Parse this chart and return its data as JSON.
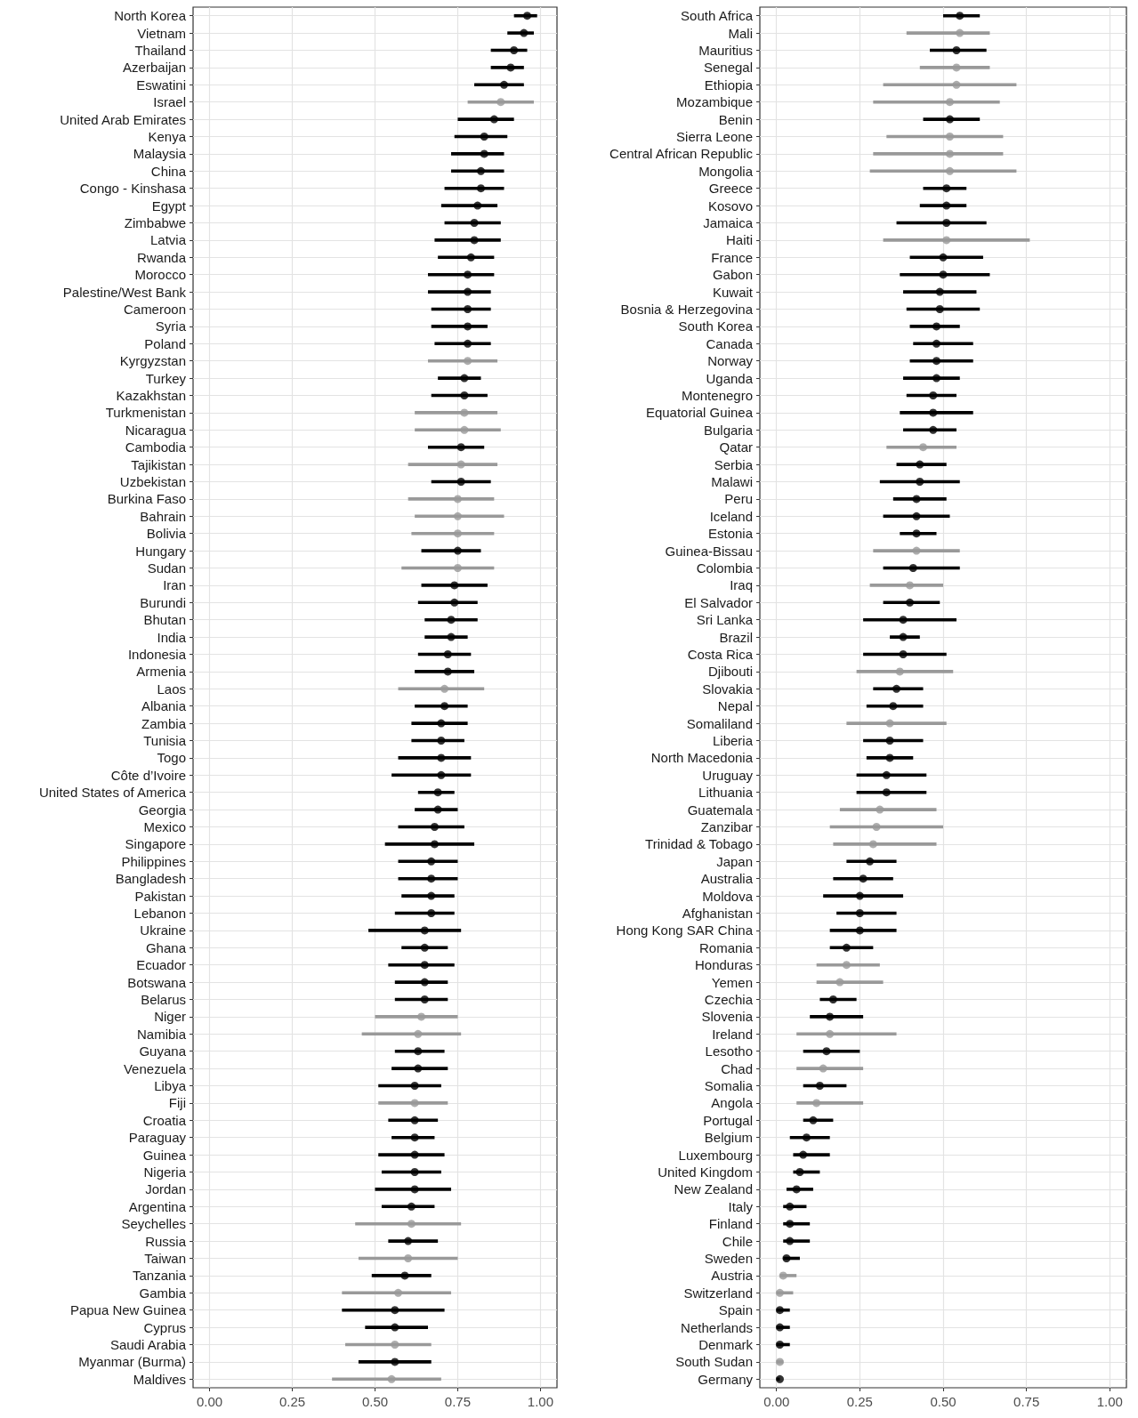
{
  "chart_data": [
    {
      "type": "scatter",
      "orientation": "horizontal",
      "marker": "circle",
      "grid": true,
      "xlim": [
        -0.05,
        1.05
      ],
      "xticks": [
        {
          "value": 0,
          "label": "0.00"
        },
        {
          "value": 0.25,
          "label": "0.25"
        },
        {
          "value": 0.5,
          "label": "0.50"
        },
        {
          "value": 0.75,
          "label": "0.75"
        },
        {
          "value": 1,
          "label": "1.00"
        }
      ],
      "categories": [
        "North Korea",
        "Vietnam",
        "Thailand",
        "Azerbaijan",
        "Eswatini",
        "Israel",
        "United Arab Emirates",
        "Kenya",
        "Malaysia",
        "China",
        "Congo - Kinshasa",
        "Egypt",
        "Zimbabwe",
        "Latvia",
        "Rwanda",
        "Morocco",
        "Palestine/West Bank",
        "Cameroon",
        "Syria",
        "Poland",
        "Kyrgyzstan",
        "Turkey",
        "Kazakhstan",
        "Turkmenistan",
        "Nicaragua",
        "Cambodia",
        "Tajikistan",
        "Uzbekistan",
        "Burkina Faso",
        "Bahrain",
        "Bolivia",
        "Hungary",
        "Sudan",
        "Iran",
        "Burundi",
        "Bhutan",
        "India",
        "Indonesia",
        "Armenia",
        "Laos",
        "Albania",
        "Zambia",
        "Tunisia",
        "Togo",
        "Côte d’Ivoire",
        "United States of America",
        "Georgia",
        "Mexico",
        "Singapore",
        "Philippines",
        "Bangladesh",
        "Pakistan",
        "Lebanon",
        "Ukraine",
        "Ghana",
        "Ecuador",
        "Botswana",
        "Belarus",
        "Niger",
        "Namibia",
        "Guyana",
        "Venezuela",
        "Libya",
        "Fiji",
        "Croatia",
        "Paraguay",
        "Guinea",
        "Nigeria",
        "Jordan",
        "Argentina",
        "Seychelles",
        "Russia",
        "Taiwan",
        "Tanzania",
        "Gambia",
        "Papua New Guinea",
        "Cyprus",
        "Saudi Arabia",
        "Myanmar (Burma)",
        "Maldives"
      ],
      "values": [
        0.96,
        0.95,
        0.92,
        0.91,
        0.89,
        0.88,
        0.86,
        0.83,
        0.83,
        0.82,
        0.82,
        0.81,
        0.8,
        0.8,
        0.79,
        0.78,
        0.78,
        0.78,
        0.78,
        0.78,
        0.78,
        0.77,
        0.77,
        0.77,
        0.77,
        0.76,
        0.76,
        0.76,
        0.75,
        0.75,
        0.75,
        0.75,
        0.75,
        0.74,
        0.74,
        0.73,
        0.73,
        0.72,
        0.72,
        0.71,
        0.71,
        0.7,
        0.7,
        0.7,
        0.7,
        0.69,
        0.69,
        0.68,
        0.68,
        0.67,
        0.67,
        0.67,
        0.67,
        0.65,
        0.65,
        0.65,
        0.65,
        0.65,
        0.64,
        0.63,
        0.63,
        0.63,
        0.62,
        0.62,
        0.62,
        0.62,
        0.62,
        0.62,
        0.62,
        0.61,
        0.61,
        0.6,
        0.6,
        0.59,
        0.57,
        0.56,
        0.56,
        0.56,
        0.56,
        0.55
      ],
      "errors": [
        [
          0.92,
          0.99
        ],
        [
          0.9,
          0.98
        ],
        [
          0.85,
          0.96
        ],
        [
          0.85,
          0.95
        ],
        [
          0.8,
          0.95
        ],
        [
          0.78,
          0.98
        ],
        [
          0.75,
          0.92
        ],
        [
          0.74,
          0.9
        ],
        [
          0.73,
          0.89
        ],
        [
          0.73,
          0.89
        ],
        [
          0.71,
          0.89
        ],
        [
          0.7,
          0.87
        ],
        [
          0.71,
          0.88
        ],
        [
          0.68,
          0.88
        ],
        [
          0.69,
          0.86
        ],
        [
          0.66,
          0.86
        ],
        [
          0.66,
          0.85
        ],
        [
          0.67,
          0.85
        ],
        [
          0.67,
          0.84
        ],
        [
          0.68,
          0.85
        ],
        [
          0.66,
          0.87
        ],
        [
          0.69,
          0.82
        ],
        [
          0.67,
          0.84
        ],
        [
          0.62,
          0.87
        ],
        [
          0.62,
          0.88
        ],
        [
          0.66,
          0.83
        ],
        [
          0.6,
          0.87
        ],
        [
          0.67,
          0.85
        ],
        [
          0.6,
          0.86
        ],
        [
          0.62,
          0.89
        ],
        [
          0.61,
          0.86
        ],
        [
          0.64,
          0.82
        ],
        [
          0.58,
          0.86
        ],
        [
          0.64,
          0.84
        ],
        [
          0.63,
          0.81
        ],
        [
          0.65,
          0.81
        ],
        [
          0.65,
          0.78
        ],
        [
          0.63,
          0.79
        ],
        [
          0.62,
          0.8
        ],
        [
          0.57,
          0.83
        ],
        [
          0.62,
          0.78
        ],
        [
          0.61,
          0.78
        ],
        [
          0.61,
          0.77
        ],
        [
          0.57,
          0.79
        ],
        [
          0.55,
          0.79
        ],
        [
          0.63,
          0.74
        ],
        [
          0.62,
          0.75
        ],
        [
          0.57,
          0.77
        ],
        [
          0.53,
          0.8
        ],
        [
          0.57,
          0.75
        ],
        [
          0.57,
          0.75
        ],
        [
          0.58,
          0.74
        ],
        [
          0.56,
          0.74
        ],
        [
          0.48,
          0.76
        ],
        [
          0.58,
          0.72
        ],
        [
          0.54,
          0.74
        ],
        [
          0.56,
          0.72
        ],
        [
          0.56,
          0.72
        ],
        [
          0.5,
          0.75
        ],
        [
          0.46,
          0.76
        ],
        [
          0.56,
          0.71
        ],
        [
          0.55,
          0.72
        ],
        [
          0.51,
          0.7
        ],
        [
          0.51,
          0.72
        ],
        [
          0.54,
          0.69
        ],
        [
          0.55,
          0.68
        ],
        [
          0.51,
          0.71
        ],
        [
          0.52,
          0.7
        ],
        [
          0.5,
          0.73
        ],
        [
          0.52,
          0.68
        ],
        [
          0.44,
          0.76
        ],
        [
          0.54,
          0.69
        ],
        [
          0.45,
          0.75
        ],
        [
          0.49,
          0.67
        ],
        [
          0.4,
          0.73
        ],
        [
          0.4,
          0.71
        ],
        [
          0.47,
          0.66
        ],
        [
          0.41,
          0.67
        ],
        [
          0.45,
          0.67
        ],
        [
          0.37,
          0.7
        ]
      ],
      "colors": [
        "#000000",
        "#000000",
        "#000000",
        "#000000",
        "#000000",
        "#999999",
        "#000000",
        "#000000",
        "#000000",
        "#000000",
        "#000000",
        "#000000",
        "#000000",
        "#000000",
        "#000000",
        "#000000",
        "#000000",
        "#000000",
        "#000000",
        "#000000",
        "#999999",
        "#000000",
        "#000000",
        "#999999",
        "#999999",
        "#000000",
        "#999999",
        "#000000",
        "#999999",
        "#999999",
        "#999999",
        "#000000",
        "#999999",
        "#000000",
        "#000000",
        "#000000",
        "#000000",
        "#000000",
        "#000000",
        "#999999",
        "#000000",
        "#000000",
        "#000000",
        "#000000",
        "#000000",
        "#000000",
        "#000000",
        "#000000",
        "#000000",
        "#000000",
        "#000000",
        "#000000",
        "#000000",
        "#000000",
        "#000000",
        "#000000",
        "#000000",
        "#000000",
        "#999999",
        "#999999",
        "#000000",
        "#000000",
        "#000000",
        "#999999",
        "#000000",
        "#000000",
        "#000000",
        "#000000",
        "#000000",
        "#000000",
        "#999999",
        "#000000",
        "#999999",
        "#000000",
        "#999999",
        "#000000",
        "#000000",
        "#999999",
        "#000000",
        "#999999"
      ]
    },
    {
      "type": "scatter",
      "orientation": "horizontal",
      "marker": "circle",
      "grid": true,
      "xlim": [
        -0.05,
        1.05
      ],
      "xticks": [
        {
          "value": 0,
          "label": "0.00"
        },
        {
          "value": 0.25,
          "label": "0.25"
        },
        {
          "value": 0.5,
          "label": "0.50"
        },
        {
          "value": 0.75,
          "label": "0.75"
        },
        {
          "value": 1,
          "label": "1.00"
        }
      ],
      "categories": [
        "South Africa",
        "Mali",
        "Mauritius",
        "Senegal",
        "Ethiopia",
        "Mozambique",
        "Benin",
        "Sierra Leone",
        "Central African Republic",
        "Mongolia",
        "Greece",
        "Kosovo",
        "Jamaica",
        "Haiti",
        "France",
        "Gabon",
        "Kuwait",
        "Bosnia & Herzegovina",
        "South Korea",
        "Canada",
        "Norway",
        "Uganda",
        "Montenegro",
        "Equatorial Guinea",
        "Bulgaria",
        "Qatar",
        "Serbia",
        "Malawi",
        "Peru",
        "Iceland",
        "Estonia",
        "Guinea-Bissau",
        "Colombia",
        "Iraq",
        "El Salvador",
        "Sri Lanka",
        "Brazil",
        "Costa Rica",
        "Djibouti",
        "Slovakia",
        "Nepal",
        "Somaliland",
        "Liberia",
        "North Macedonia",
        "Uruguay",
        "Lithuania",
        "Guatemala",
        "Zanzibar",
        "Trinidad & Tobago",
        "Japan",
        "Australia",
        "Moldova",
        "Afghanistan",
        "Hong Kong SAR China",
        "Romania",
        "Honduras",
        "Yemen",
        "Czechia",
        "Slovenia",
        "Ireland",
        "Lesotho",
        "Chad",
        "Somalia",
        "Angola",
        "Portugal",
        "Belgium",
        "Luxembourg",
        "United Kingdom",
        "New Zealand",
        "Italy",
        "Finland",
        "Chile",
        "Sweden",
        "Austria",
        "Switzerland",
        "Spain",
        "Netherlands",
        "Denmark",
        "South Sudan",
        "Germany"
      ],
      "values": [
        0.55,
        0.55,
        0.54,
        0.54,
        0.54,
        0.52,
        0.52,
        0.52,
        0.52,
        0.52,
        0.51,
        0.51,
        0.51,
        0.51,
        0.5,
        0.5,
        0.49,
        0.49,
        0.48,
        0.48,
        0.48,
        0.48,
        0.47,
        0.47,
        0.47,
        0.44,
        0.43,
        0.43,
        0.42,
        0.42,
        0.42,
        0.42,
        0.41,
        0.4,
        0.4,
        0.38,
        0.38,
        0.38,
        0.37,
        0.36,
        0.35,
        0.34,
        0.34,
        0.34,
        0.33,
        0.33,
        0.31,
        0.3,
        0.29,
        0.28,
        0.26,
        0.25,
        0.25,
        0.25,
        0.21,
        0.21,
        0.19,
        0.17,
        0.16,
        0.16,
        0.15,
        0.14,
        0.13,
        0.12,
        0.11,
        0.09,
        0.08,
        0.07,
        0.06,
        0.04,
        0.04,
        0.04,
        0.03,
        0.02,
        0.01,
        0.01,
        0.01,
        0.01,
        0.01,
        0.01
      ],
      "errors": [
        [
          0.5,
          0.61
        ],
        [
          0.39,
          0.64
        ],
        [
          0.46,
          0.63
        ],
        [
          0.43,
          0.64
        ],
        [
          0.32,
          0.72
        ],
        [
          0.29,
          0.67
        ],
        [
          0.44,
          0.61
        ],
        [
          0.33,
          0.68
        ],
        [
          0.29,
          0.68
        ],
        [
          0.28,
          0.72
        ],
        [
          0.44,
          0.57
        ],
        [
          0.43,
          0.57
        ],
        [
          0.36,
          0.63
        ],
        [
          0.32,
          0.76
        ],
        [
          0.4,
          0.62
        ],
        [
          0.37,
          0.64
        ],
        [
          0.38,
          0.6
        ],
        [
          0.39,
          0.61
        ],
        [
          0.4,
          0.55
        ],
        [
          0.41,
          0.59
        ],
        [
          0.4,
          0.59
        ],
        [
          0.38,
          0.55
        ],
        [
          0.39,
          0.54
        ],
        [
          0.37,
          0.59
        ],
        [
          0.38,
          0.54
        ],
        [
          0.33,
          0.54
        ],
        [
          0.36,
          0.51
        ],
        [
          0.31,
          0.55
        ],
        [
          0.35,
          0.51
        ],
        [
          0.32,
          0.52
        ],
        [
          0.37,
          0.48
        ],
        [
          0.29,
          0.55
        ],
        [
          0.32,
          0.55
        ],
        [
          0.28,
          0.5
        ],
        [
          0.32,
          0.49
        ],
        [
          0.26,
          0.54
        ],
        [
          0.34,
          0.43
        ],
        [
          0.26,
          0.51
        ],
        [
          0.24,
          0.53
        ],
        [
          0.29,
          0.44
        ],
        [
          0.27,
          0.44
        ],
        [
          0.21,
          0.51
        ],
        [
          0.26,
          0.44
        ],
        [
          0.27,
          0.41
        ],
        [
          0.24,
          0.45
        ],
        [
          0.24,
          0.45
        ],
        [
          0.19,
          0.48
        ],
        [
          0.16,
          0.5
        ],
        [
          0.17,
          0.48
        ],
        [
          0.21,
          0.36
        ],
        [
          0.17,
          0.35
        ],
        [
          0.14,
          0.38
        ],
        [
          0.18,
          0.36
        ],
        [
          0.16,
          0.36
        ],
        [
          0.16,
          0.29
        ],
        [
          0.12,
          0.31
        ],
        [
          0.12,
          0.32
        ],
        [
          0.13,
          0.24
        ],
        [
          0.1,
          0.26
        ],
        [
          0.06,
          0.36
        ],
        [
          0.08,
          0.25
        ],
        [
          0.06,
          0.26
        ],
        [
          0.08,
          0.21
        ],
        [
          0.06,
          0.26
        ],
        [
          0.08,
          0.17
        ],
        [
          0.04,
          0.16
        ],
        [
          0.05,
          0.16
        ],
        [
          0.05,
          0.13
        ],
        [
          0.03,
          0.11
        ],
        [
          0.02,
          0.09
        ],
        [
          0.02,
          0.1
        ],
        [
          0.02,
          0.1
        ],
        [
          0.02,
          0.07
        ],
        [
          0.01,
          0.06
        ],
        [
          0,
          0.05
        ],
        [
          0,
          0.04
        ],
        [
          0,
          0.04
        ],
        [
          0,
          0.04
        ],
        [
          0,
          0.02
        ],
        [
          0,
          0.01
        ]
      ],
      "colors": [
        "#000000",
        "#999999",
        "#000000",
        "#999999",
        "#999999",
        "#999999",
        "#000000",
        "#999999",
        "#999999",
        "#999999",
        "#000000",
        "#000000",
        "#000000",
        "#999999",
        "#000000",
        "#000000",
        "#000000",
        "#000000",
        "#000000",
        "#000000",
        "#000000",
        "#000000",
        "#000000",
        "#000000",
        "#000000",
        "#999999",
        "#000000",
        "#000000",
        "#000000",
        "#000000",
        "#000000",
        "#999999",
        "#000000",
        "#999999",
        "#000000",
        "#000000",
        "#000000",
        "#000000",
        "#999999",
        "#000000",
        "#000000",
        "#999999",
        "#000000",
        "#000000",
        "#000000",
        "#000000",
        "#999999",
        "#999999",
        "#999999",
        "#000000",
        "#000000",
        "#000000",
        "#000000",
        "#000000",
        "#000000",
        "#999999",
        "#999999",
        "#000000",
        "#000000",
        "#999999",
        "#000000",
        "#999999",
        "#000000",
        "#999999",
        "#000000",
        "#000000",
        "#000000",
        "#000000",
        "#000000",
        "#000000",
        "#000000",
        "#000000",
        "#000000",
        "#999999",
        "#999999",
        "#000000",
        "#000000",
        "#000000",
        "#999999",
        "#000000"
      ]
    }
  ]
}
